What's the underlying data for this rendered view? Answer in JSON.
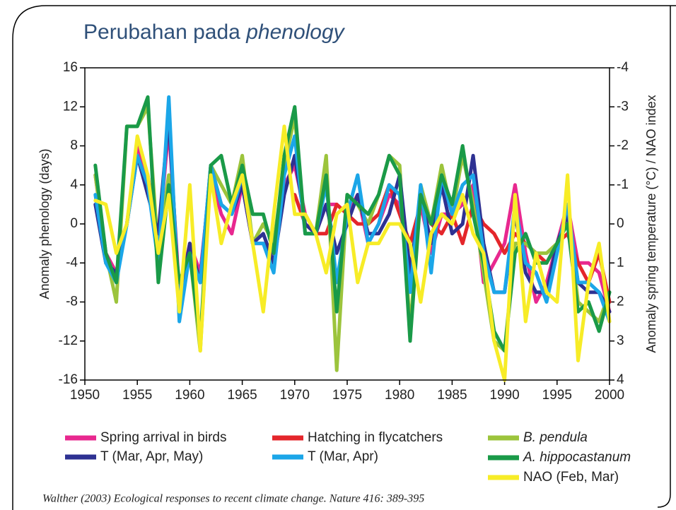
{
  "chart_data": {
    "type": "line",
    "title": "Perubahan pada",
    "title_italic": "phenology",
    "y_label": "Anomaly phenology (days)",
    "y2_label": "Anomaly spring temperature (°C) / NAO index",
    "citation": "Walther (2003) Ecological responses to recent climate change. Nature 416: 389-395",
    "x": [
      1951,
      1952,
      1953,
      1954,
      1955,
      1956,
      1957,
      1958,
      1959,
      1960,
      1961,
      1962,
      1963,
      1964,
      1965,
      1966,
      1967,
      1968,
      1969,
      1970,
      1971,
      1972,
      1973,
      1974,
      1975,
      1976,
      1977,
      1978,
      1979,
      1980,
      1981,
      1982,
      1983,
      1984,
      1985,
      1986,
      1987,
      1988,
      1989,
      1990,
      1991,
      1992,
      1993,
      1994,
      1995,
      1996,
      1997,
      1998,
      1999,
      2000
    ],
    "xlim": [
      1950,
      2000
    ],
    "xticks": [
      1950,
      1955,
      1960,
      1965,
      1970,
      1975,
      1980,
      1985,
      1990,
      1995,
      2000
    ],
    "ylim": [
      -16,
      16
    ],
    "yticks": [
      -16,
      -12,
      -8,
      -4,
      0,
      4,
      8,
      12,
      16
    ],
    "y2lim": [
      4,
      -4
    ],
    "y2ticks": [
      4,
      3,
      2,
      1,
      0,
      -1,
      -2,
      -3,
      -4
    ],
    "series": [
      {
        "name": "Spring arrival in birds",
        "color": "#e8288f",
        "values": [
          5,
          -3,
          -5,
          0,
          8,
          5,
          -2,
          10,
          -7,
          -2,
          -5,
          5,
          1,
          -1,
          4,
          -2,
          -2,
          -3,
          4,
          6,
          1,
          -1,
          2,
          2,
          1,
          3,
          -2,
          0,
          3,
          2,
          -5,
          2,
          -3,
          1,
          1,
          2,
          4,
          -6,
          -4,
          -2,
          4,
          -3,
          -8,
          -6,
          -2,
          2,
          -4,
          -4,
          -5,
          -9
        ]
      },
      {
        "name": "Hatching in flycatchers",
        "color": "#e4262b",
        "values": [
          null,
          null,
          null,
          null,
          null,
          null,
          null,
          null,
          null,
          null,
          null,
          null,
          null,
          null,
          null,
          null,
          null,
          null,
          null,
          3,
          0,
          -1,
          -1,
          2,
          1,
          0,
          0,
          1,
          4,
          1,
          -2,
          2,
          0,
          -1,
          1,
          -2,
          2,
          0,
          -1,
          -3,
          -1,
          -2,
          -3,
          -4,
          -2,
          -1,
          -4,
          -6,
          -3,
          -8
        ]
      },
      {
        "name": "B. pendula",
        "color": "#9cc43c",
        "italic": true,
        "values": [
          5,
          -3,
          -8,
          10,
          10,
          12,
          -3,
          5,
          -7,
          -3,
          -13,
          6,
          4,
          2,
          7,
          -2,
          0,
          -2,
          6,
          11,
          -1,
          -1,
          7,
          -15,
          3,
          2,
          0,
          3,
          7,
          6,
          -11,
          4,
          0,
          6,
          1,
          7,
          2,
          -5,
          -12,
          -13,
          -2,
          -2,
          -3,
          -3,
          -2,
          1,
          -8,
          -9,
          -10,
          -7
        ]
      },
      {
        "name": "T (Mar, Apr, May)",
        "color": "#2e3192",
        "axis": "y2",
        "values": [
          -0.5,
          1,
          1.25,
          0,
          -1.75,
          -0.75,
          0.25,
          -2.75,
          2,
          0.5,
          1.5,
          -1.5,
          -0.5,
          -0.25,
          -1,
          0.5,
          0.25,
          1,
          -0.75,
          -1.75,
          0,
          0.25,
          -0.5,
          0.75,
          0,
          -0.75,
          0.25,
          0.25,
          -0.25,
          -1.25,
          1.25,
          -0.75,
          0.5,
          -1,
          0.25,
          0,
          -1.75,
          0.5,
          1.75,
          1.75,
          -0.25,
          1.25,
          1.75,
          1.75,
          0.5,
          -0.25,
          1.5,
          1.75,
          1.75,
          2.25
        ]
      },
      {
        "name": "T (Mar, Apr)",
        "color": "#1ba6e8",
        "axis": "y2",
        "values": [
          -0.75,
          1,
          1.5,
          0,
          -1.75,
          -1,
          1,
          -3.25,
          2.5,
          0.75,
          1.5,
          -1.5,
          -0.5,
          -0.25,
          -1.25,
          0.5,
          0.5,
          1.25,
          -1.25,
          -2.25,
          0.25,
          0.25,
          -1,
          1.5,
          -0.25,
          -1.25,
          0.5,
          0,
          -1,
          -0.75,
          1.75,
          -1,
          1.25,
          -1.25,
          -0.25,
          -1,
          -1.25,
          0.75,
          1.75,
          1.75,
          -0.5,
          1,
          1.25,
          2,
          0.75,
          -0.5,
          1.5,
          1.5,
          1.75,
          2.5
        ]
      },
      {
        "name": "A. hippocastanum",
        "color": "#1a9a48",
        "italic": true,
        "values": [
          6,
          -3,
          -6,
          10,
          10,
          13,
          -6,
          4,
          -6,
          -3,
          -12,
          6,
          7,
          2,
          6,
          1,
          1,
          -3,
          7,
          12,
          -1,
          -1,
          5,
          -9,
          3,
          2,
          1,
          3,
          7,
          5,
          -12,
          3,
          0,
          5,
          2,
          8,
          1,
          -4,
          -11,
          -13,
          -3,
          -1,
          -4,
          -4,
          -2,
          0,
          -9,
          -8,
          -11,
          -7
        ]
      },
      {
        "name": "NAO (Feb, Mar)",
        "color": "#f7ec27",
        "axis": "y2",
        "values": [
          -0.6,
          -0.5,
          0.75,
          0,
          -2.25,
          -1.25,
          0.75,
          -0.75,
          2.25,
          -1,
          3.25,
          -1.25,
          0.5,
          -0.5,
          -1.25,
          0.5,
          2.25,
          -0.25,
          -2.5,
          -0.25,
          -0.25,
          0.25,
          1.25,
          -0.25,
          -0.5,
          1.5,
          0.5,
          0.5,
          0,
          0,
          0.5,
          2,
          0.25,
          -0.25,
          0,
          -0.75,
          0.25,
          0.75,
          3,
          4,
          -0.75,
          2.5,
          0.75,
          1.75,
          2,
          -1.25,
          3.5,
          1.5,
          0.5,
          2.5
        ]
      }
    ]
  }
}
